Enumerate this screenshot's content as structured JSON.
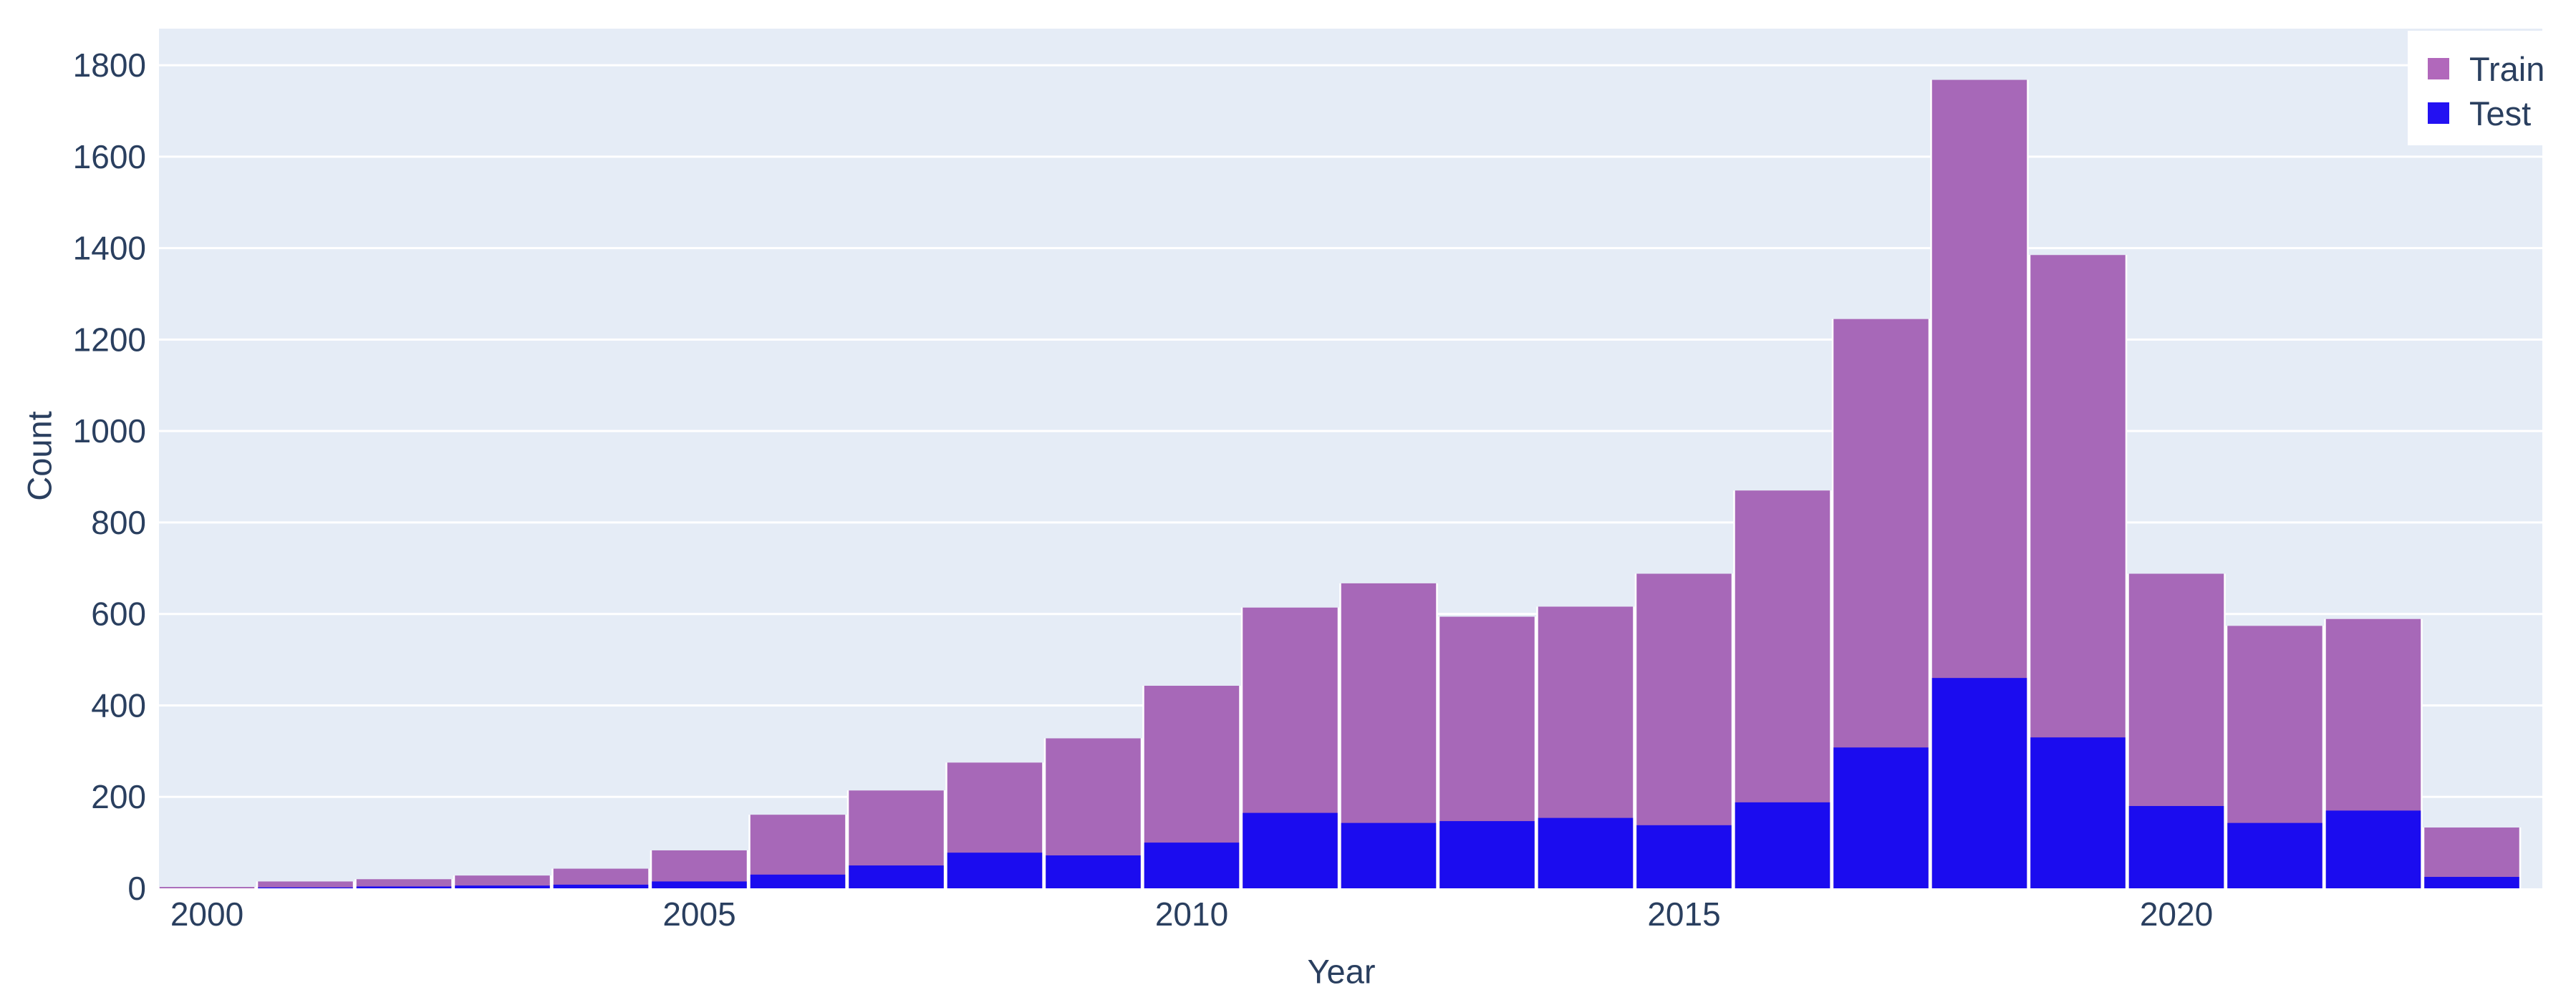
{
  "chart_data": {
    "type": "bar",
    "subtype": "histogram-overlay",
    "title": "",
    "xlabel": "Year",
    "ylabel": "Count",
    "categories": [
      2000,
      2001,
      2002,
      2003,
      2004,
      2005,
      2006,
      2007,
      2008,
      2009,
      2010,
      2011,
      2012,
      2013,
      2014,
      2015,
      2016,
      2017,
      2018,
      2019,
      2020,
      2021,
      2022,
      2023
    ],
    "series": [
      {
        "name": "Train",
        "color": "#a768b8",
        "legend_color": "#b168bb",
        "values": [
          3,
          15,
          20,
          28,
          43,
          83,
          161,
          214,
          275,
          328,
          443,
          614,
          667,
          594,
          616,
          688,
          870,
          1245,
          1768,
          1385,
          688,
          574,
          589,
          133
        ]
      },
      {
        "name": "Test",
        "color": "#1b0cef",
        "legend_color": "#2311f2",
        "values": [
          0,
          2,
          4,
          6,
          8,
          15,
          30,
          50,
          78,
          72,
          100,
          165,
          143,
          147,
          154,
          138,
          188,
          308,
          460,
          330,
          180,
          143,
          170,
          25
        ]
      }
    ],
    "x_ticks": [
      2000,
      2005,
      2010,
      2015,
      2020
    ],
    "y_ticks": [
      0,
      200,
      400,
      600,
      800,
      1000,
      1200,
      1400,
      1600,
      1800
    ],
    "xlim": [
      1999.5,
      2023.75
    ],
    "ylim": [
      0,
      1880
    ],
    "grid": true,
    "legend_position": "top-right",
    "colors": {
      "plot_bg": "#e5ecf6",
      "grid": "#ffffff",
      "text": "#2a3f5f",
      "bar_border": "#ffffff"
    }
  }
}
